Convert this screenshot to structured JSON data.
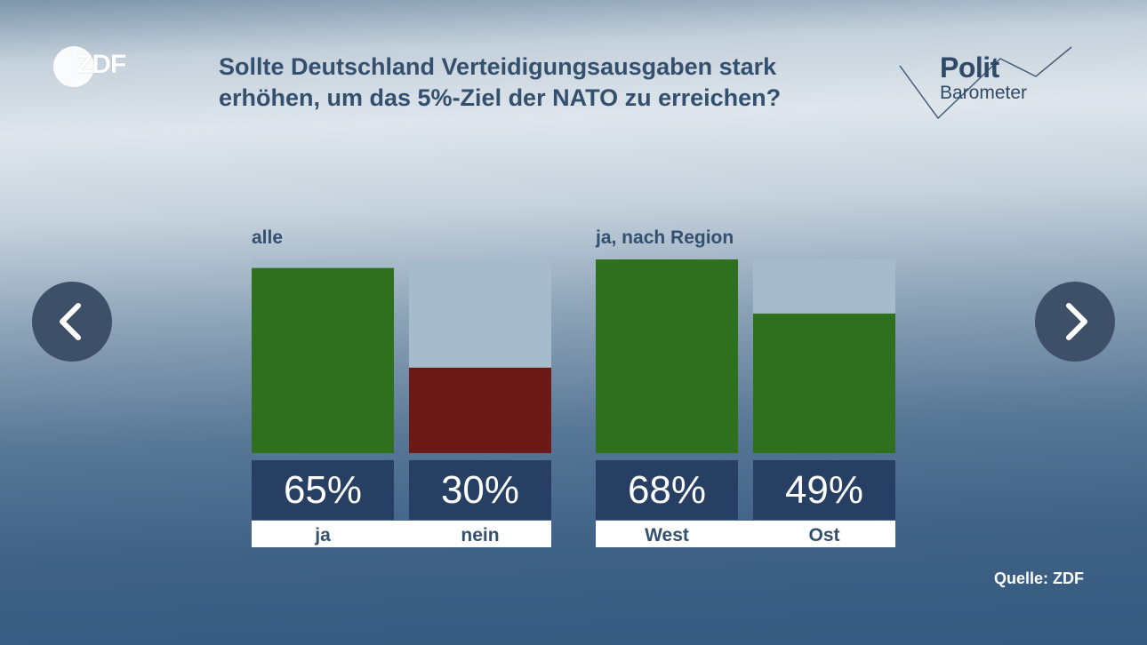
{
  "brand": {
    "logo_text": "ZDF",
    "panel_logo_line1": "Polit",
    "panel_logo_line2": "Barometer"
  },
  "title": "Sollte Deutschland Verteidigungsausgaben stark\nerhöhen, um das 5%-Ziel der NATO zu erreichen?",
  "source": "Quelle: ZDF",
  "navigation": {
    "prev_icon": "chevron-left-icon",
    "next_icon": "chevron-right-icon"
  },
  "colors": {
    "yes_green": "#2f701e",
    "no_red": "#6b1a15",
    "bar_track": "#a6bccd",
    "value_box": "#263f63",
    "label_strip": "#ffffff",
    "text_dark": "#34506f"
  },
  "chart_data": {
    "type": "bar",
    "title": "Sollte Deutschland Verteidigungsausgaben stark\nerhöhen, um das 5%-Ziel der NATO zu erreichen?",
    "ylim": [
      0,
      68
    ],
    "grid": false,
    "groups": [
      {
        "label": "alle",
        "bars": [
          {
            "category": "ja",
            "value": 65,
            "value_label": "65%",
            "color": "#2f701e"
          },
          {
            "category": "nein",
            "value": 30,
            "value_label": "30%",
            "color": "#6b1a15"
          }
        ]
      },
      {
        "label": "ja, nach Region",
        "bars": [
          {
            "category": "West",
            "value": 68,
            "value_label": "68%",
            "color": "#2f701e"
          },
          {
            "category": "Ost",
            "value": 49,
            "value_label": "49%",
            "color": "#2f701e"
          }
        ]
      }
    ]
  }
}
